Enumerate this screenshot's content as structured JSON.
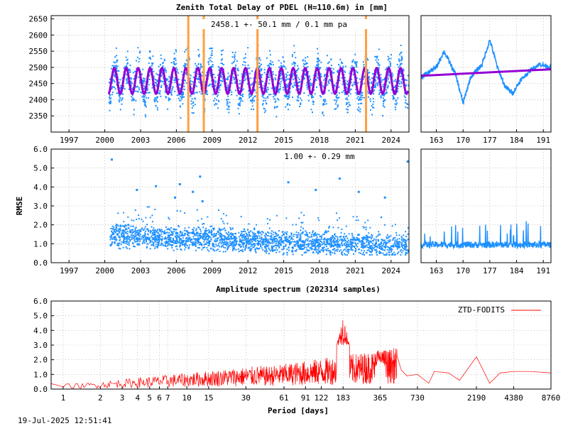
{
  "colors": {
    "ztd": "#1e90ff",
    "model": "#9400d3",
    "break": "#ff9f40",
    "spectrum": "#ff0000"
  },
  "chart_data": [
    {
      "type": "scatter",
      "title": "Zenith Total Delay of PDEL (H=110.6m) in [mm]",
      "annotation": "2458.1 +-  50.1 mm /  0.1 mm pa",
      "x_ticks": [
        "1997",
        "2000",
        "2003",
        "2006",
        "2009",
        "2012",
        "2015",
        "2018",
        "2021",
        "2024"
      ],
      "y_ticks": [
        "2350",
        "2400",
        "2450",
        "2500",
        "2550",
        "2600",
        "2650"
      ],
      "ylim": [
        2300,
        2660
      ],
      "xlim": [
        1995.5,
        2025.5
      ],
      "series": [
        {
          "type": "scatter",
          "mean": 2458.1,
          "seasonal_amplitude": 40,
          "spread": 80,
          "x_range": [
            2000.3,
            2025.4
          ]
        },
        {
          "type": "line",
          "mean": 2458.1,
          "seasonal_amplitude": 40,
          "x_range": [
            2000.3,
            2025.4
          ]
        }
      ],
      "vertical_lines": [
        2007.0,
        2008.3,
        2012.8,
        2021.9
      ]
    },
    {
      "type": "line",
      "x_ticks": [
        "163",
        "170",
        "177",
        "184",
        "191"
      ],
      "xlim": [
        159,
        193
      ],
      "ylim": [
        2300,
        2660
      ],
      "trend": [
        [
          159,
          2474
        ],
        [
          193,
          2494
        ]
      ]
    },
    {
      "type": "scatter",
      "ylabel": "RMSE",
      "annotation": "1.00 +-  0.29 mm",
      "x_ticks": [
        "1997",
        "2000",
        "2003",
        "2006",
        "2009",
        "2012",
        "2015",
        "2018",
        "2021",
        "2024"
      ],
      "y_ticks": [
        "0.0",
        "1.0",
        "2.0",
        "3.0",
        "4.0",
        "5.0",
        "6.0"
      ],
      "ylim": [
        0,
        6
      ],
      "xlim": [
        1995.5,
        2025.5
      ],
      "mean": 1.0,
      "outliers": [
        [
          2000.5,
          5.5
        ],
        [
          2002.6,
          3.9
        ],
        [
          2004.2,
          4.1
        ],
        [
          2005.8,
          3.5
        ],
        [
          2006.2,
          4.2
        ],
        [
          2007.3,
          3.8
        ],
        [
          2007.9,
          4.6
        ],
        [
          2008.1,
          3.3
        ],
        [
          2015.3,
          4.3
        ],
        [
          2017.6,
          3.9
        ],
        [
          2019.6,
          4.5
        ],
        [
          2021.2,
          3.8
        ],
        [
          2023.4,
          3.5
        ],
        [
          2025.3,
          5.4
        ]
      ]
    },
    {
      "type": "line",
      "x_ticks": [
        "163",
        "170",
        "177",
        "184",
        "191"
      ],
      "xlim": [
        159,
        193
      ],
      "ylim": [
        0,
        6
      ],
      "mean": 0.95
    },
    {
      "type": "line",
      "title": "Amplitude spectrum (202314 samples)",
      "xlabel": "Period [days]",
      "legend": "ZTD-FODITS",
      "legend_position": "top-right",
      "x_scale": "log",
      "xlim": [
        0.8,
        8760
      ],
      "x_ticks": [
        "1",
        "2",
        "3",
        "4",
        "5",
        "6",
        "7",
        "10",
        "15",
        "30",
        "61",
        "91",
        "122",
        "183",
        "365",
        "730",
        "2190",
        "4380",
        "8760"
      ],
      "y_ticks": [
        "0.0",
        "1.0",
        "2.0",
        "3.0",
        "4.0",
        "5.0",
        "6.0"
      ],
      "ylim": [
        0,
        6
      ],
      "peaks": [
        [
          183,
          5.2
        ],
        [
          365,
          2.7
        ],
        [
          730,
          1.0
        ],
        [
          2190,
          2.2
        ],
        [
          4380,
          1.2
        ],
        [
          8760,
          1.1
        ]
      ]
    }
  ],
  "footer": {
    "timestamp": "19-Jul-2025 12:51:41"
  }
}
